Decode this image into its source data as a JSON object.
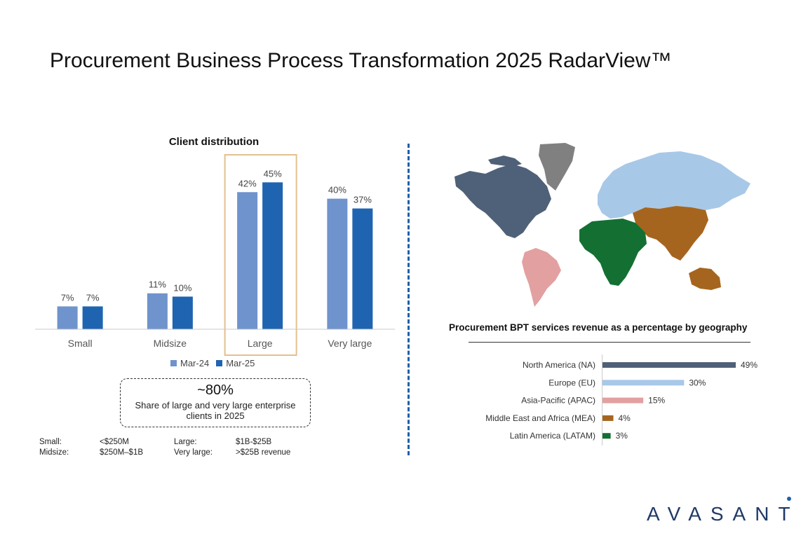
{
  "page": {
    "title": "Procurement Business Process Transformation 2025 RadarView™",
    "logo": "AVASANT"
  },
  "chart_data": [
    {
      "type": "bar",
      "title": "Client distribution",
      "categories": [
        "Small",
        "Midsize",
        "Large",
        "Very large"
      ],
      "series": [
        {
          "name": "Mar-24",
          "values": [
            7,
            11,
            42,
            40
          ],
          "labels": [
            "7%",
            "11%",
            "42%",
            "40%"
          ],
          "color": "#6f93cc"
        },
        {
          "name": "Mar-25",
          "values": [
            7,
            10,
            45,
            37
          ],
          "labels": [
            "7%",
            "10%",
            "45%",
            "37%"
          ],
          "color": "#1f64b0"
        }
      ],
      "highlighted_category": "Large",
      "highlight_color": "#e3c08f",
      "ylim": [
        0,
        50
      ],
      "legend_position": "bottom",
      "grid": false
    },
    {
      "type": "bar",
      "orientation": "horizontal",
      "title": "Procurement BPT services revenue as a percentage by geography",
      "categories": [
        "North America (NA)",
        "Europe (EU)",
        "Asia-Pacific (APAC)",
        "Middle East and Africa (MEA)",
        "Latin America (LATAM)"
      ],
      "values": [
        49,
        30,
        15,
        4,
        3
      ],
      "labels": [
        "49%",
        "30%",
        "15%",
        "4%",
        "3%"
      ],
      "colors": [
        "#4f6178",
        "#a8c8e8",
        "#e3a0a0",
        "#a6651e",
        "#137032"
      ],
      "grid": false
    }
  ],
  "callout": {
    "headline": "~80%",
    "text": "Share of large and very large enterprise clients in 2025"
  },
  "definitions": [
    {
      "label": "Small:",
      "value": "<$250M",
      "label2": "Large:",
      "value2": "$1B-$25B"
    },
    {
      "label": "Midsize:",
      "value": "$250M–$1B",
      "label2": "Very large:",
      "value2": ">$25B revenue"
    }
  ],
  "map": {
    "regions": [
      {
        "name": "North America",
        "color": "#4f6178"
      },
      {
        "name": "Greenland",
        "color": "#808080"
      },
      {
        "name": "Europe and Russia",
        "color": "#a8c8e8"
      },
      {
        "name": "Asia-Pacific",
        "color": "#a6651e"
      },
      {
        "name": "Middle East and Africa",
        "color": "#137032"
      },
      {
        "name": "Latin America",
        "color": "#e3a0a0"
      }
    ]
  }
}
